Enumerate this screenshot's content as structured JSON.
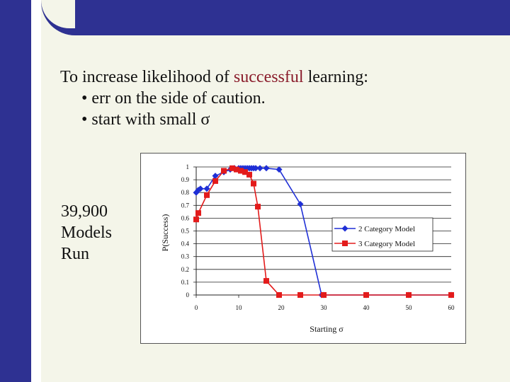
{
  "heading": {
    "line1_pre": "To increase likelihood of ",
    "line1_accent": "successful",
    "line1_post": " learning:",
    "bullet1": "• err on the side of caution.",
    "bullet2": "• start with small σ"
  },
  "side_note": [
    "39,900",
    "Models",
    "Run"
  ],
  "colors": {
    "background": "#f4f5e9",
    "frame": "#2e3192",
    "accent_text": "#8a1c2b",
    "series_2cat": "#1f2fd6",
    "series_3cat": "#e31b1b"
  },
  "chart_data": {
    "type": "line",
    "title": "",
    "xlabel": "Starting σ",
    "ylabel": "P(Success)",
    "xlim": [
      0,
      60
    ],
    "ylim": [
      0,
      1
    ],
    "xticks": [
      "0",
      "10",
      "20",
      "30",
      "40",
      "50",
      "60"
    ],
    "yticks": [
      "0",
      "0.1",
      "0.2",
      "0.3",
      "0.4",
      "0.5",
      "0.6",
      "0.7",
      "0.8",
      "0.9",
      "1"
    ],
    "grid": "horizontal",
    "legend_position": "right",
    "series": [
      {
        "name": "2 Category Model",
        "marker": "diamond",
        "points": [
          [
            0,
            0.8
          ],
          [
            0.5,
            0.82
          ],
          [
            1,
            0.83
          ],
          [
            2.5,
            0.83
          ],
          [
            4.5,
            0.93
          ],
          [
            6.5,
            0.96
          ],
          [
            8,
            0.98
          ],
          [
            9,
            0.99
          ],
          [
            10,
            0.99
          ],
          [
            10.5,
            0.99
          ],
          [
            11,
            0.99
          ],
          [
            11.5,
            0.99
          ],
          [
            12,
            0.99
          ],
          [
            12.5,
            0.99
          ],
          [
            13,
            0.99
          ],
          [
            13.5,
            0.99
          ],
          [
            14,
            0.99
          ],
          [
            15,
            0.99
          ],
          [
            16.5,
            0.99
          ],
          [
            19.5,
            0.98
          ],
          [
            24.5,
            0.71
          ],
          [
            29.5,
            0
          ],
          [
            30,
            0
          ],
          [
            40,
            0
          ],
          [
            50,
            0
          ],
          [
            60,
            0
          ]
        ]
      },
      {
        "name": "3 Category Model",
        "marker": "square",
        "points": [
          [
            0,
            0.59
          ],
          [
            0.5,
            0.64
          ],
          [
            2.5,
            0.78
          ],
          [
            4.5,
            0.89
          ],
          [
            6.5,
            0.97
          ],
          [
            8.5,
            0.99
          ],
          [
            9.5,
            0.98
          ],
          [
            10.5,
            0.97
          ],
          [
            11.5,
            0.96
          ],
          [
            12.5,
            0.94
          ],
          [
            13.5,
            0.87
          ],
          [
            14.5,
            0.69
          ],
          [
            16.5,
            0.11
          ],
          [
            19.5,
            0
          ],
          [
            24.5,
            0
          ],
          [
            30,
            0
          ],
          [
            40,
            0
          ],
          [
            50,
            0
          ],
          [
            60,
            0
          ]
        ]
      }
    ]
  }
}
